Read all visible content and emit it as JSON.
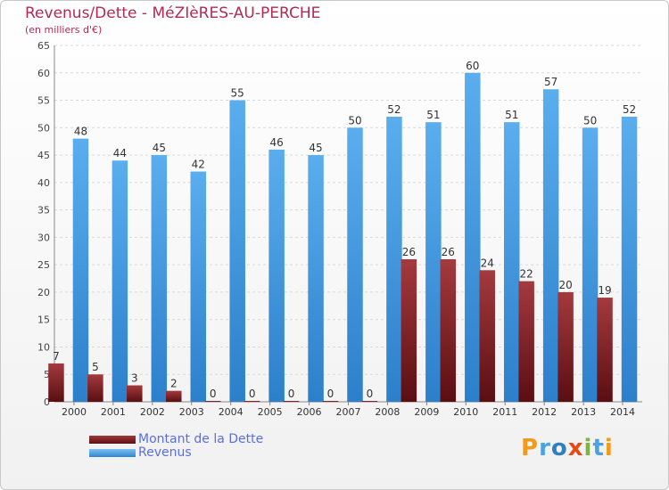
{
  "chart_data": {
    "type": "bar",
    "title": "Revenus/Dette - MéZIèRES-AU-PERCHE",
    "subtitle": "(en milliers d'€)",
    "categories": [
      "2000",
      "2001",
      "2002",
      "2003",
      "2004",
      "2005",
      "2006",
      "2007",
      "2008",
      "2009",
      "2010",
      "2011",
      "2012",
      "2013",
      "2014"
    ],
    "series": [
      {
        "name": "Montant de la Dette",
        "color": "#7a1b1f",
        "values": [
          7,
          5,
          3,
          2,
          0,
          0,
          0,
          0,
          0,
          26,
          26,
          24,
          22,
          20,
          19
        ]
      },
      {
        "name": "Revenus",
        "color": "#4a9be0",
        "values": [
          48,
          44,
          45,
          42,
          55,
          46,
          45,
          50,
          52,
          51,
          60,
          51,
          57,
          50,
          52
        ]
      }
    ],
    "ylim": [
      0,
      65
    ],
    "yticks": [
      0,
      5,
      10,
      15,
      20,
      25,
      30,
      35,
      40,
      45,
      50,
      55,
      60,
      65
    ],
    "grid": true,
    "legend": "bottom-left",
    "xlabel": "",
    "ylabel": ""
  },
  "branding": {
    "logo_letters": [
      "P",
      "r",
      "o",
      "x",
      "i",
      "t",
      "i"
    ],
    "logo_colors": [
      "#f39a1c",
      "#4aa3df",
      "#2f7fc1",
      "#e64a19",
      "#7cb342",
      "#4aa3df",
      "#f39a1c"
    ]
  }
}
